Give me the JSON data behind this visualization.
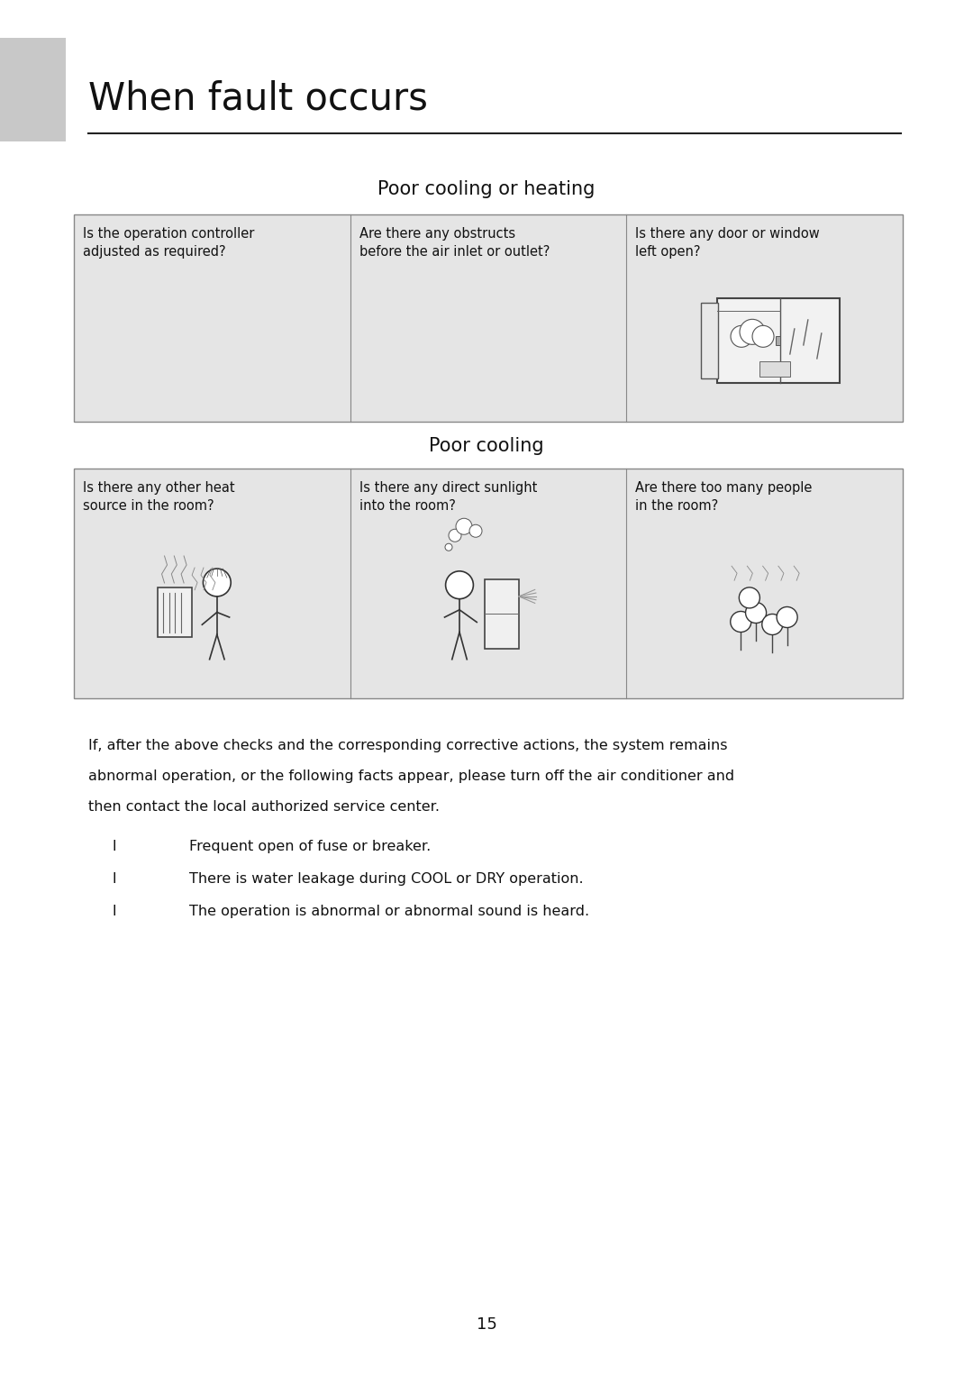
{
  "page_title": "When fault occurs",
  "section1_title": "Poor cooling or heating",
  "section2_title": "Poor cooling",
  "table1_texts": [
    "Is the operation controller\nadjusted as required?",
    "Are there any obstructs\nbefore the air inlet or outlet?",
    "Is there any door or window\nleft open?"
  ],
  "table2_texts": [
    "Is there any other heat\nsource in the room?",
    "Is there any direct sunlight\ninto the room?",
    "Are there too many people\nin the room?"
  ],
  "body_lines": [
    "If, after the above checks and the corresponding corrective actions, the system remains",
    "abnormal operation, or the following facts appear, please turn off the air conditioner and",
    "then contact the local authorized service center."
  ],
  "bullet_items": [
    "Frequent open of fuse or breaker.",
    "There is water leakage during COOL or DRY operation.",
    "The operation is abnormal or abnormal sound is heard."
  ],
  "page_number": "15",
  "bg_color": "#ffffff",
  "cell_bg_color": "#e5e5e5",
  "sidebar_color": "#c8c8c8",
  "border_color": "#888888",
  "text_color": "#111111",
  "title_rule_color": "#222222"
}
